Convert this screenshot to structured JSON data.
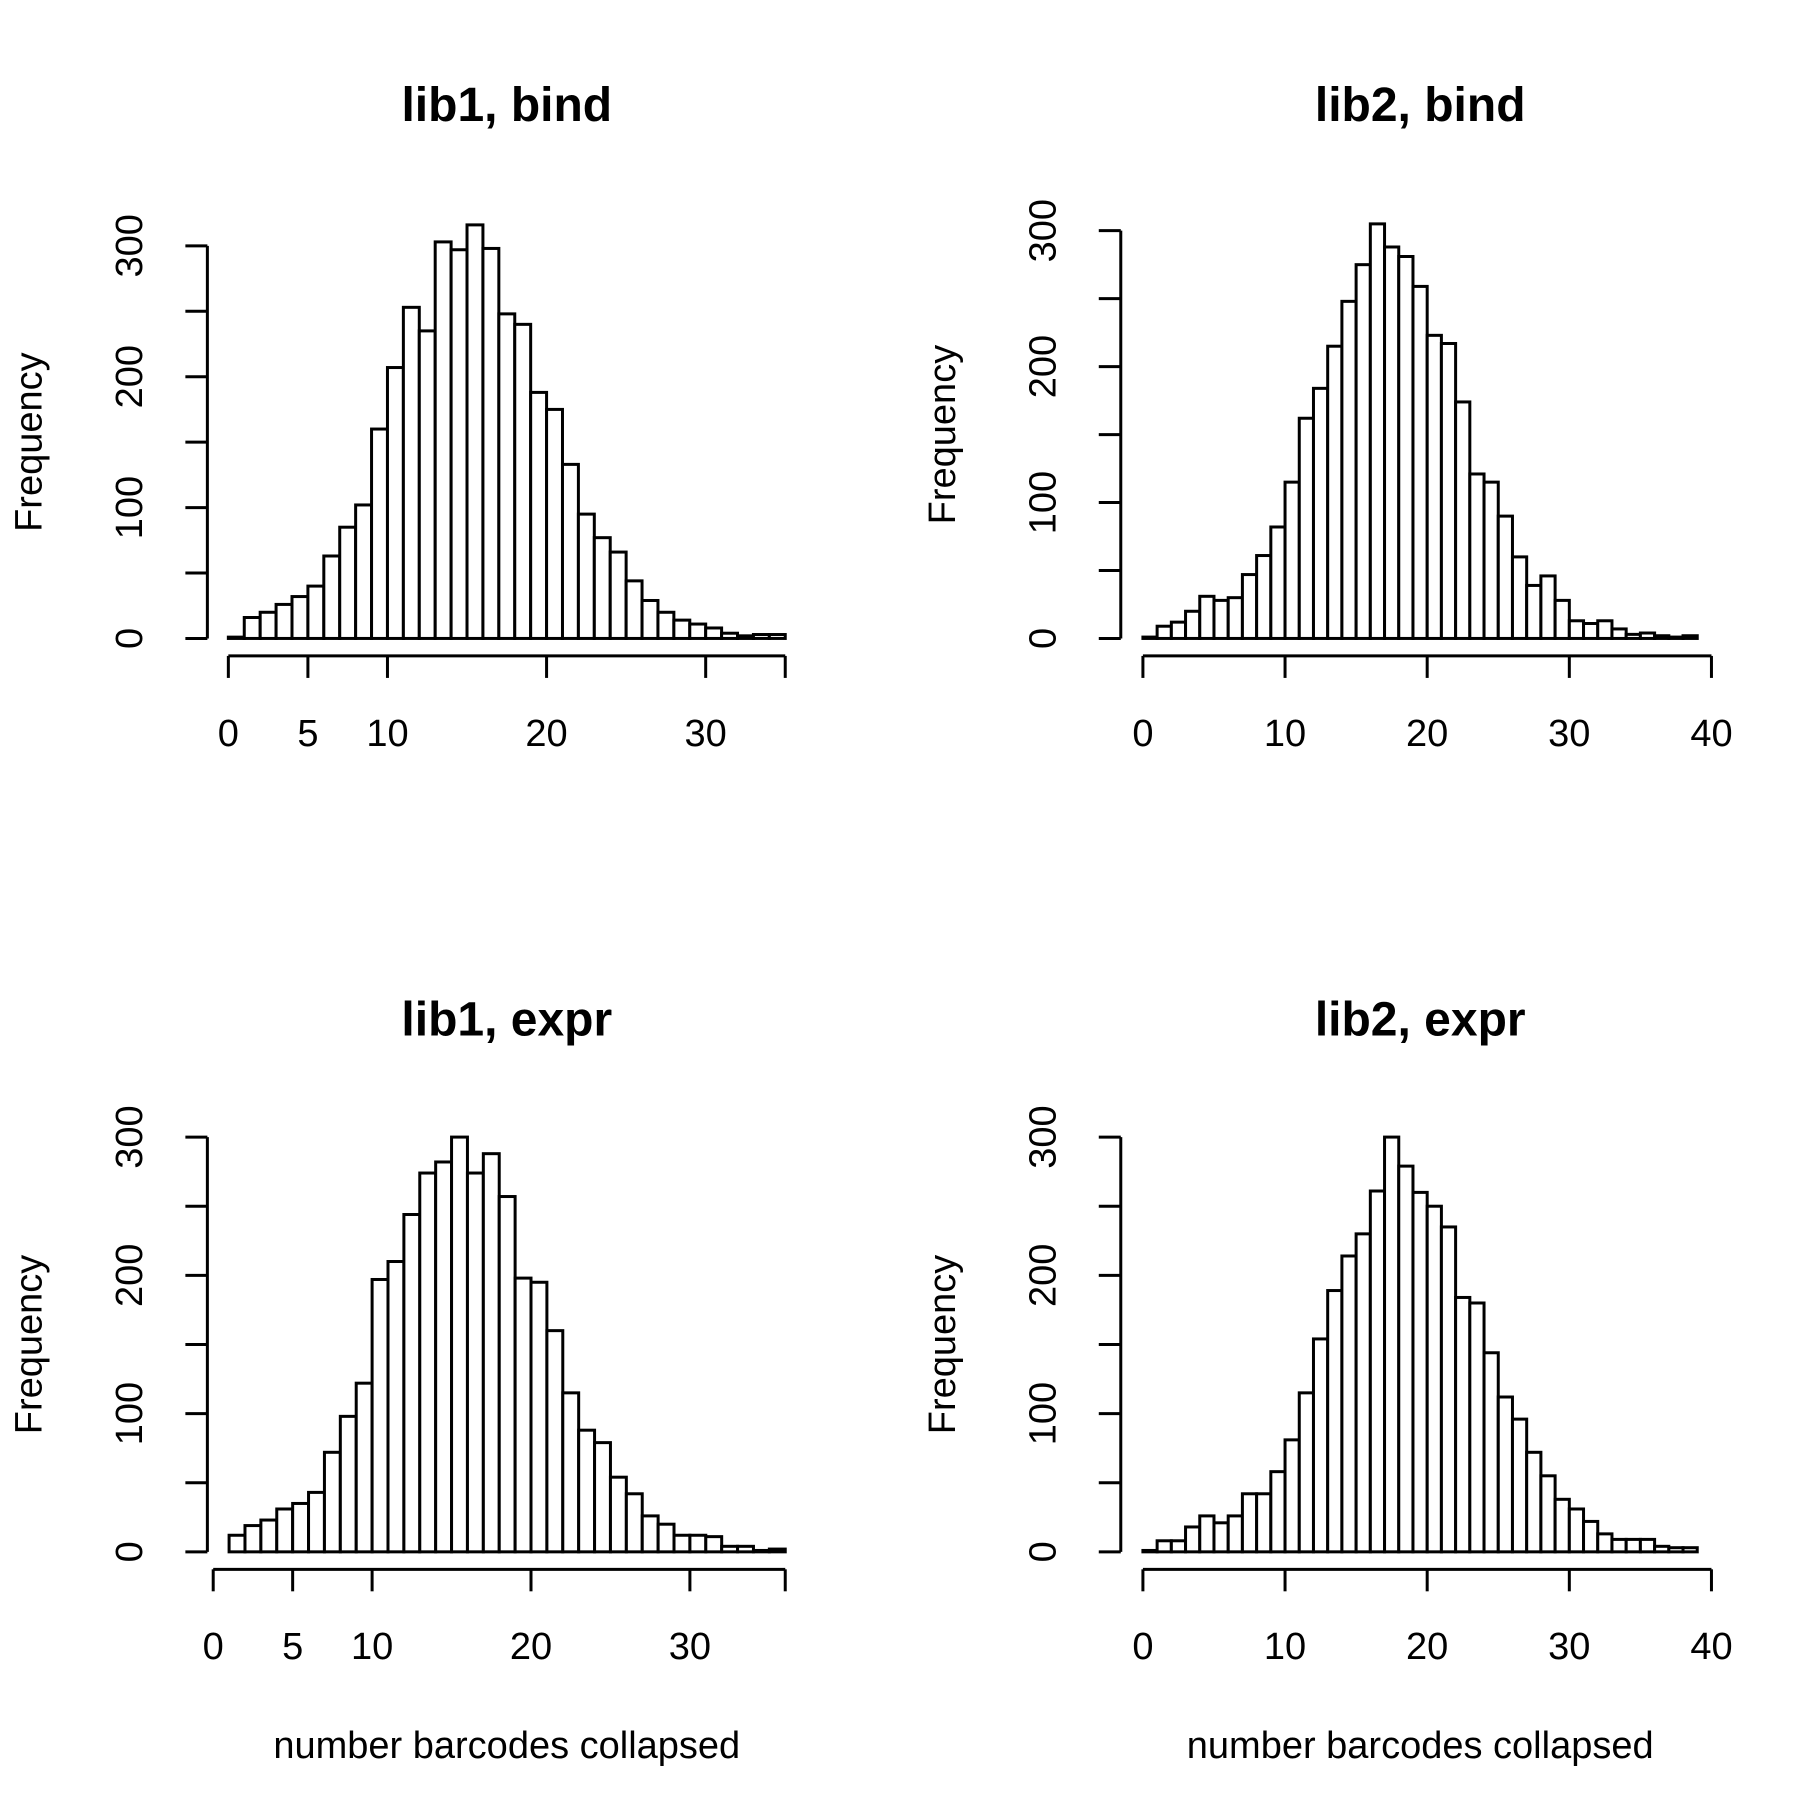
{
  "chart_data": [
    {
      "type": "bar",
      "title": "lib1, bind",
      "xlabel": "",
      "ylabel": "Frequency",
      "xlim": [
        0,
        35
      ],
      "ylim": [
        0,
        300
      ],
      "x_ticks": [
        "0",
        "5",
        "10",
        "20",
        "30"
      ],
      "y_ticks": [
        "0",
        "100",
        "200",
        "300"
      ],
      "bins": [
        [
          0,
          1
        ],
        [
          1,
          2
        ],
        [
          2,
          3
        ],
        [
          3,
          4
        ],
        [
          4,
          5
        ],
        [
          5,
          6
        ],
        [
          6,
          7
        ],
        [
          7,
          8
        ],
        [
          8,
          9
        ],
        [
          9,
          10
        ],
        [
          10,
          11
        ],
        [
          11,
          12
        ],
        [
          12,
          13
        ],
        [
          13,
          14
        ],
        [
          14,
          15
        ],
        [
          15,
          16
        ],
        [
          16,
          17
        ],
        [
          17,
          18
        ],
        [
          18,
          19
        ],
        [
          19,
          20
        ],
        [
          20,
          21
        ],
        [
          21,
          22
        ],
        [
          22,
          23
        ],
        [
          23,
          24
        ],
        [
          24,
          25
        ],
        [
          25,
          26
        ],
        [
          26,
          27
        ],
        [
          27,
          28
        ],
        [
          28,
          29
        ],
        [
          29,
          30
        ],
        [
          30,
          31
        ],
        [
          31,
          32
        ],
        [
          32,
          33
        ],
        [
          33,
          34
        ],
        [
          34,
          35
        ]
      ],
      "values": [
        1,
        16,
        20,
        26,
        32,
        40,
        63,
        85,
        102,
        160,
        207,
        253,
        235,
        303,
        297,
        316,
        298,
        248,
        240,
        188,
        175,
        133,
        95,
        77,
        66,
        44,
        29,
        20,
        14,
        11,
        8,
        4,
        2,
        3,
        3
      ]
    },
    {
      "type": "bar",
      "title": "lib2, bind",
      "xlabel": "",
      "ylabel": "Frequency",
      "xlim": [
        0,
        40
      ],
      "ylim": [
        0,
        300
      ],
      "x_ticks": [
        "0",
        "10",
        "20",
        "30",
        "40"
      ],
      "y_ticks": [
        "0",
        "100",
        "200",
        "300"
      ],
      "bins": [
        [
          0,
          1
        ],
        [
          1,
          2
        ],
        [
          2,
          3
        ],
        [
          3,
          4
        ],
        [
          4,
          5
        ],
        [
          5,
          6
        ],
        [
          6,
          7
        ],
        [
          7,
          8
        ],
        [
          8,
          9
        ],
        [
          9,
          10
        ],
        [
          10,
          11
        ],
        [
          11,
          12
        ],
        [
          12,
          13
        ],
        [
          13,
          14
        ],
        [
          14,
          15
        ],
        [
          15,
          16
        ],
        [
          16,
          17
        ],
        [
          17,
          18
        ],
        [
          18,
          19
        ],
        [
          19,
          20
        ],
        [
          20,
          21
        ],
        [
          21,
          22
        ],
        [
          22,
          23
        ],
        [
          23,
          24
        ],
        [
          24,
          25
        ],
        [
          25,
          26
        ],
        [
          26,
          27
        ],
        [
          27,
          28
        ],
        [
          28,
          29
        ],
        [
          29,
          30
        ],
        [
          30,
          31
        ],
        [
          31,
          32
        ],
        [
          32,
          33
        ],
        [
          33,
          34
        ],
        [
          34,
          35
        ],
        [
          35,
          36
        ],
        [
          36,
          37
        ],
        [
          37,
          38
        ],
        [
          38,
          39
        ]
      ],
      "values": [
        1,
        9,
        12,
        20,
        31,
        28,
        30,
        47,
        61,
        82,
        115,
        162,
        184,
        215,
        248,
        275,
        305,
        288,
        281,
        259,
        223,
        217,
        174,
        121,
        115,
        90,
        60,
        39,
        46,
        28,
        13,
        11,
        13,
        7,
        3,
        4,
        2,
        1,
        2
      ]
    },
    {
      "type": "bar",
      "title": "lib1, expr",
      "xlabel": "number barcodes collapsed",
      "ylabel": "Frequency",
      "xlim": [
        0,
        36
      ],
      "ylim": [
        0,
        300
      ],
      "x_ticks": [
        "0",
        "5",
        "10",
        "20",
        "30"
      ],
      "y_ticks": [
        "0",
        "100",
        "200",
        "300"
      ],
      "bins": [
        [
          1,
          2
        ],
        [
          2,
          3
        ],
        [
          3,
          4
        ],
        [
          4,
          5
        ],
        [
          5,
          6
        ],
        [
          6,
          7
        ],
        [
          7,
          8
        ],
        [
          8,
          9
        ],
        [
          9,
          10
        ],
        [
          10,
          11
        ],
        [
          11,
          12
        ],
        [
          12,
          13
        ],
        [
          13,
          14
        ],
        [
          14,
          15
        ],
        [
          15,
          16
        ],
        [
          16,
          17
        ],
        [
          17,
          18
        ],
        [
          18,
          19
        ],
        [
          19,
          20
        ],
        [
          20,
          21
        ],
        [
          21,
          22
        ],
        [
          22,
          23
        ],
        [
          23,
          24
        ],
        [
          24,
          25
        ],
        [
          25,
          26
        ],
        [
          26,
          27
        ],
        [
          27,
          28
        ],
        [
          28,
          29
        ],
        [
          29,
          30
        ],
        [
          30,
          31
        ],
        [
          31,
          32
        ],
        [
          32,
          33
        ],
        [
          33,
          34
        ],
        [
          34,
          35
        ],
        [
          35,
          36
        ]
      ],
      "values": [
        12,
        19,
        23,
        31,
        35,
        43,
        72,
        98,
        122,
        197,
        210,
        244,
        274,
        282,
        300,
        274,
        288,
        257,
        198,
        195,
        160,
        115,
        88,
        79,
        54,
        42,
        26,
        20,
        12,
        12,
        11,
        4,
        4,
        1,
        2
      ]
    },
    {
      "type": "bar",
      "title": "lib2, expr",
      "xlabel": "number barcodes collapsed",
      "ylabel": "Frequency",
      "xlim": [
        0,
        40
      ],
      "ylim": [
        0,
        300
      ],
      "x_ticks": [
        "0",
        "10",
        "20",
        "30",
        "40"
      ],
      "y_ticks": [
        "0",
        "100",
        "200",
        "300"
      ],
      "bins": [
        [
          0,
          1
        ],
        [
          1,
          2
        ],
        [
          2,
          3
        ],
        [
          3,
          4
        ],
        [
          4,
          5
        ],
        [
          5,
          6
        ],
        [
          6,
          7
        ],
        [
          7,
          8
        ],
        [
          8,
          9
        ],
        [
          9,
          10
        ],
        [
          10,
          11
        ],
        [
          11,
          12
        ],
        [
          12,
          13
        ],
        [
          13,
          14
        ],
        [
          14,
          15
        ],
        [
          15,
          16
        ],
        [
          16,
          17
        ],
        [
          17,
          18
        ],
        [
          18,
          19
        ],
        [
          19,
          20
        ],
        [
          20,
          21
        ],
        [
          21,
          22
        ],
        [
          22,
          23
        ],
        [
          23,
          24
        ],
        [
          24,
          25
        ],
        [
          25,
          26
        ],
        [
          26,
          27
        ],
        [
          27,
          28
        ],
        [
          28,
          29
        ],
        [
          29,
          30
        ],
        [
          30,
          31
        ],
        [
          31,
          32
        ],
        [
          32,
          33
        ],
        [
          33,
          34
        ],
        [
          34,
          35
        ],
        [
          35,
          36
        ],
        [
          36,
          37
        ],
        [
          37,
          38
        ],
        [
          38,
          39
        ]
      ],
      "values": [
        1,
        8,
        8,
        18,
        26,
        21,
        26,
        42,
        42,
        58,
        81,
        115,
        154,
        189,
        214,
        230,
        261,
        300,
        279,
        260,
        250,
        235,
        184,
        180,
        144,
        112,
        96,
        72,
        55,
        38,
        31,
        22,
        13,
        9,
        9,
        9,
        4,
        3,
        3
      ]
    }
  ]
}
